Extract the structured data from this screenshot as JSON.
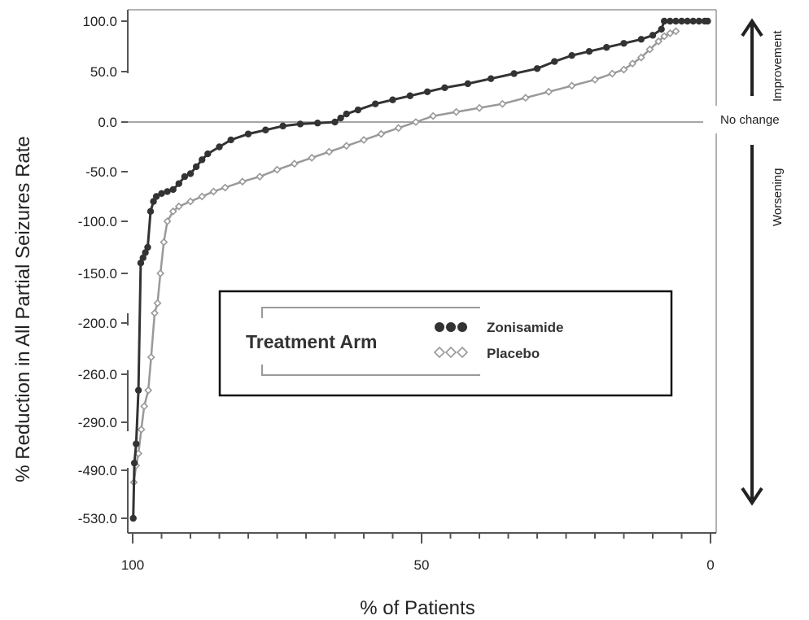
{
  "chart_data": {
    "type": "line",
    "xlabel": "% of Patients",
    "ylabel": "% Reduction in All Partial Seizures Rate",
    "x_range": [
      100,
      0
    ],
    "x_ticks": [
      "100",
      "50",
      "0"
    ],
    "y_ticks": [
      "100.0",
      "50.0",
      "0.0",
      "-50.0",
      "-100.0",
      "-150.0",
      "-200.0",
      "-260.0",
      "-290.0",
      "-490.0",
      "-530.0"
    ],
    "reference_line": {
      "y": 0,
      "label": "No change"
    },
    "annotations": {
      "up": "Improvement",
      "down": "Worsening"
    },
    "legend": {
      "title": "Treatment Arm",
      "placement": "center"
    },
    "grid": false,
    "series": [
      {
        "name": "Zonisamide",
        "color": "#333333",
        "marker": "filled-circle",
        "x": [
          99.9,
          99.7,
          99.4,
          99.0,
          98.6,
          98.2,
          97.8,
          97.4,
          96.9,
          96.4,
          95.9,
          95.0,
          94.0,
          93.0,
          92.0,
          91.0,
          90.0,
          89.0,
          88.0,
          87.0,
          85.0,
          83.0,
          80.0,
          77.0,
          74.0,
          71.0,
          68.0,
          65.0,
          64.0,
          63.0,
          61.0,
          58.0,
          55.0,
          52.0,
          49.0,
          46.0,
          42.0,
          38.0,
          34.0,
          30.0,
          27.0,
          24.0,
          21.0,
          18.0,
          15.0,
          12.0,
          10.0,
          8.5,
          8.0,
          7.0,
          6.0,
          5.0,
          4.0,
          3.0,
          2.0,
          1.0,
          0.5
        ],
        "y": [
          -530,
          -460,
          -380,
          -270,
          -140,
          -135,
          -130,
          -125,
          -90,
          -80,
          -75,
          -72,
          -70,
          -68,
          -62,
          -55,
          -52,
          -45,
          -38,
          -32,
          -25,
          -18,
          -12,
          -8,
          -4,
          -2,
          -1,
          0,
          4,
          8,
          12,
          18,
          22,
          26,
          30,
          34,
          38,
          43,
          48,
          53,
          60,
          66,
          70,
          74,
          78,
          82,
          86,
          92,
          100,
          100,
          100,
          100,
          100,
          100,
          100,
          100,
          100
        ]
      },
      {
        "name": "Placebo",
        "color": "#999999",
        "marker": "open-diamond",
        "x": [
          99.8,
          99.4,
          99.0,
          98.5,
          98.0,
          97.3,
          96.8,
          96.2,
          95.7,
          95.2,
          94.6,
          94.0,
          93.0,
          92.0,
          90.0,
          88.0,
          86.0,
          84.0,
          81.0,
          78.0,
          75.0,
          72.0,
          69.0,
          66.0,
          63.0,
          60.0,
          57.0,
          54.0,
          51.0,
          48.0,
          44.0,
          40.0,
          36.0,
          32.0,
          28.0,
          24.0,
          20.0,
          17.0,
          15.0,
          13.5,
          12.0,
          10.5,
          9.0,
          8.0,
          7.0,
          6.0
        ],
        "y": [
          -500,
          -470,
          -420,
          -320,
          -280,
          -270,
          -240,
          -190,
          -180,
          -150,
          -120,
          -100,
          -90,
          -85,
          -80,
          -75,
          -70,
          -66,
          -60,
          -55,
          -48,
          -42,
          -36,
          -30,
          -24,
          -18,
          -12,
          -6,
          0,
          6,
          10,
          14,
          18,
          24,
          30,
          36,
          42,
          48,
          52,
          58,
          64,
          72,
          80,
          85,
          88,
          90
        ]
      }
    ]
  }
}
